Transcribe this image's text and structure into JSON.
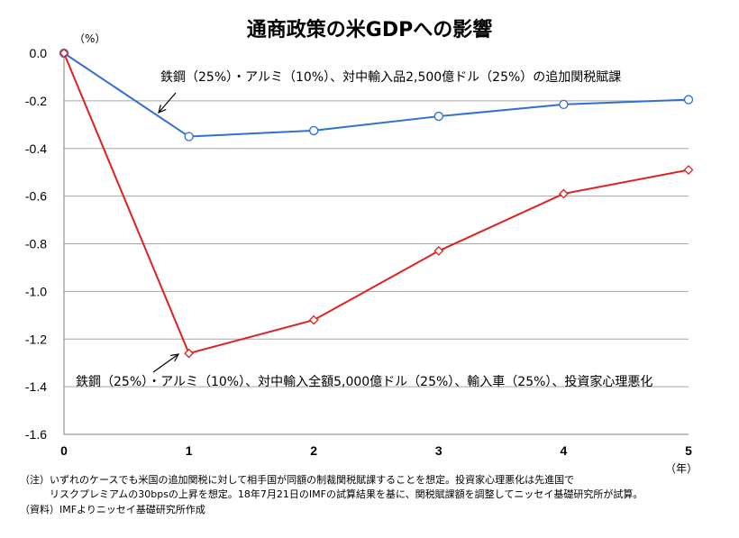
{
  "chart_data": {
    "type": "line",
    "title": "通商政策の米GDPへの影響",
    "ylabel_unit": "（%）",
    "xlabel_unit": "（年）",
    "x": [
      0,
      1,
      2,
      3,
      4,
      5
    ],
    "xticks": [
      "0",
      "1",
      "2",
      "3",
      "4",
      "5"
    ],
    "ylim": [
      -1.6,
      0.0
    ],
    "yticks": [
      "0.0",
      "-0.2",
      "-0.4",
      "-0.6",
      "-0.8",
      "-1.0",
      "-1.2",
      "-1.4",
      "-1.6"
    ],
    "grid": true,
    "series": [
      {
        "name": "鉄鋼（25%）・アルミ（10%）、対中輸入品2,500億ドル（25%）の追加関税賦課",
        "color": "#2f6fd6",
        "marker": "circle",
        "values": [
          0.0,
          -0.35,
          -0.325,
          -0.265,
          -0.215,
          -0.195
        ]
      },
      {
        "name": "鉄鋼（25%）・アルミ（10%）、対中輸入全額5,000億ドル（25%）、輸入車（25%）、投資家心理悪化",
        "color": "#e02020",
        "marker": "diamond",
        "values": [
          0.0,
          -1.26,
          -1.12,
          -0.83,
          -0.59,
          -0.49
        ]
      }
    ]
  },
  "notes": [
    "（注）いずれのケースでも米国の追加関税に対して相手国が同額の制裁関税賦課することを想定。投資家心理悪化は先進国で",
    "　　　リスクプレミアムの30bpsの上昇を想定。18年7月21日のIMFの試算結果を基に、関税賦課額を調整してニッセイ基礎研究所が試算。",
    "（資料）IMFよりニッセイ基礎研究所作成"
  ]
}
